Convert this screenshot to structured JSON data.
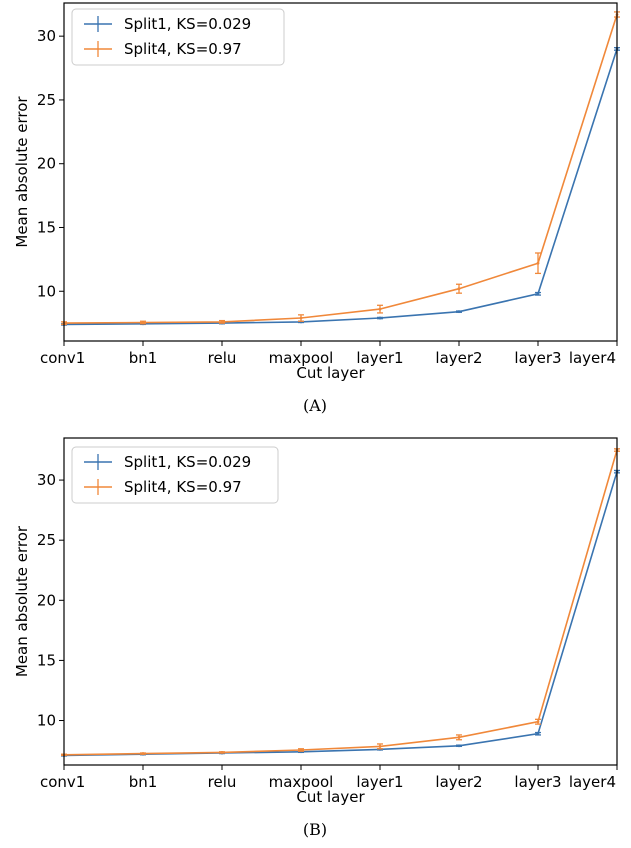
{
  "chart_data": [
    {
      "type": "line",
      "panel_label": "(A)",
      "xlabel": "Cut layer",
      "ylabel": "Mean absolute error",
      "categories": [
        "conv1",
        "bn1",
        "relu",
        "maxpool",
        "layer1",
        "layer2",
        "layer3",
        "layer4"
      ],
      "ylim": [
        6.1,
        32.6
      ],
      "yticks": [
        10,
        15,
        20,
        25,
        30
      ],
      "grid": false,
      "legend": "top-left",
      "series": [
        {
          "name": "Split1, KS=0.029",
          "color": "#3a74b0",
          "values": [
            7.4,
            7.45,
            7.5,
            7.6,
            7.9,
            8.4,
            9.8,
            29.0
          ],
          "errors": [
            0.05,
            0.05,
            0.05,
            0.05,
            0.05,
            0.05,
            0.1,
            0.1
          ]
        },
        {
          "name": "Split4, KS=0.97",
          "color": "#f0883a",
          "values": [
            7.5,
            7.55,
            7.6,
            7.9,
            8.6,
            10.2,
            12.2,
            31.7
          ],
          "errors": [
            0.1,
            0.1,
            0.1,
            0.25,
            0.3,
            0.35,
            0.8,
            0.2
          ]
        }
      ]
    },
    {
      "type": "line",
      "panel_label": "(B)",
      "xlabel": "Cut layer",
      "ylabel": "Mean absolute error",
      "categories": [
        "conv1",
        "bn1",
        "relu",
        "maxpool",
        "layer1",
        "layer2",
        "layer3",
        "layer4"
      ],
      "ylim": [
        6.3,
        33.5
      ],
      "yticks": [
        10,
        15,
        20,
        25,
        30
      ],
      "grid": false,
      "legend": "top-left",
      "series": [
        {
          "name": "Split1, KS=0.029",
          "color": "#3a74b0",
          "values": [
            7.1,
            7.2,
            7.3,
            7.4,
            7.6,
            7.9,
            8.9,
            30.7
          ],
          "errors": [
            0.05,
            0.05,
            0.05,
            0.05,
            0.05,
            0.05,
            0.1,
            0.1
          ]
        },
        {
          "name": "Split4, KS=0.97",
          "color": "#f0883a",
          "values": [
            7.15,
            7.25,
            7.35,
            7.55,
            7.85,
            8.6,
            9.9,
            32.5
          ],
          "errors": [
            0.05,
            0.05,
            0.05,
            0.1,
            0.2,
            0.2,
            0.2,
            0.1
          ]
        }
      ]
    }
  ]
}
